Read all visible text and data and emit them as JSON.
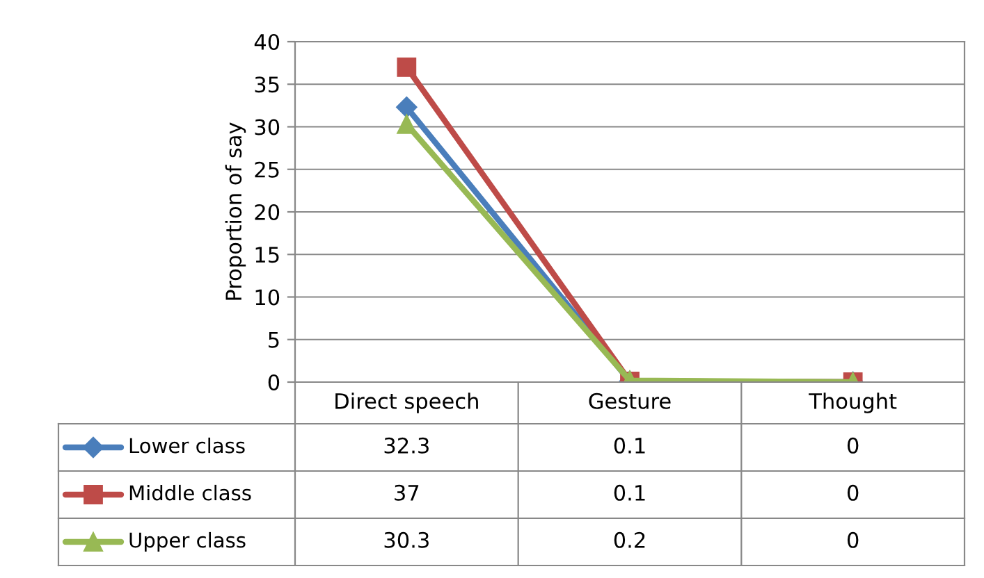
{
  "chart_data": {
    "type": "line",
    "ylabel": "Proportion of say",
    "categories": [
      "Direct speech",
      "Gesture",
      "Thought"
    ],
    "series": [
      {
        "name": "Lower class",
        "color": "#4a7ebb",
        "marker": "diamond",
        "values": [
          32.3,
          0.1,
          0
        ]
      },
      {
        "name": "Middle class",
        "color": "#be4b48",
        "marker": "square",
        "values": [
          37,
          0.1,
          0
        ]
      },
      {
        "name": "Upper class",
        "color": "#98b954",
        "marker": "triangle",
        "values": [
          30.3,
          0.2,
          0
        ]
      }
    ],
    "ylim": [
      0,
      40
    ],
    "yticks": [
      0,
      5,
      10,
      15,
      20,
      25,
      30,
      35,
      40
    ],
    "grid": "y",
    "data_labels": true,
    "legend": "bottom"
  }
}
